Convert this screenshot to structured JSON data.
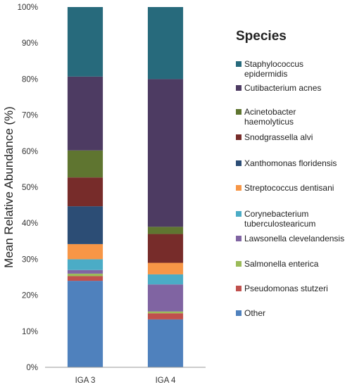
{
  "chart_data": {
    "type": "bar",
    "stacked": true,
    "ylabel": "Mean Relative Abundance (%)",
    "xlabel": "",
    "ylim": [
      0,
      100
    ],
    "yticks": [
      "0%",
      "10%",
      "20%",
      "30%",
      "40%",
      "50%",
      "60%",
      "70%",
      "80%",
      "90%",
      "100%"
    ],
    "categories": [
      "IGA 3",
      "IGA 4"
    ],
    "legend_title": "Species",
    "legend_position": "right",
    "series": [
      {
        "name": "Other",
        "color": "#4F81BD",
        "values": [
          24.0,
          13.3
        ]
      },
      {
        "name": "Pseudomonas stutzeri",
        "color": "#C0504D",
        "values": [
          1.3,
          1.7
        ]
      },
      {
        "name": "Salmonella enterica",
        "color": "#9BBB59",
        "values": [
          0.7,
          0.5
        ]
      },
      {
        "name": "Lawsonella clevelandensis",
        "color": "#8064A2",
        "values": [
          1.0,
          7.5
        ]
      },
      {
        "name": "Corynebacterium tuberculostearicum",
        "color": "#4BACC6",
        "values": [
          3.0,
          2.8
        ]
      },
      {
        "name": "Streptococcus dentisani",
        "color": "#F79646",
        "values": [
          4.2,
          3.2
        ]
      },
      {
        "name": "Xanthomonas floridensis",
        "color": "#2C4D75",
        "values": [
          10.5,
          0.0
        ]
      },
      {
        "name": "Snodgrassella alvi",
        "color": "#772C2A",
        "values": [
          8.0,
          8.0
        ]
      },
      {
        "name": "Acinetobacter haemolyticus",
        "color": "#5F7530",
        "values": [
          7.5,
          2.0
        ]
      },
      {
        "name": "Cutibacterium acnes",
        "color": "#4D3B62",
        "values": [
          20.5,
          41.0
        ]
      },
      {
        "name": "Staphylococcus epidermidis",
        "color": "#276A7C",
        "values": [
          19.3,
          20.0
        ]
      }
    ],
    "legend_labels": [
      {
        "name": "Staphylococcus epidermidis",
        "lines": [
          "Staphylococcus",
          "epidermidis"
        ]
      },
      {
        "name": "Cutibacterium acnes",
        "lines": [
          "Cutibacterium acnes"
        ]
      },
      {
        "name": "Acinetobacter haemolyticus",
        "lines": [
          "Acinetobacter",
          "haemolyticus"
        ]
      },
      {
        "name": "Snodgrassella alvi",
        "lines": [
          "Snodgrassella alvi"
        ]
      },
      {
        "name": "Xanthomonas floridensis",
        "lines": [
          "Xanthomonas floridensis"
        ]
      },
      {
        "name": "Streptococcus dentisani",
        "lines": [
          "Streptococcus dentisani"
        ]
      },
      {
        "name": "Corynebacterium tuberculostearicum",
        "lines": [
          "Corynebacterium",
          "tuberculostearicum"
        ]
      },
      {
        "name": "Lawsonella clevelandensis",
        "lines": [
          "Lawsonella clevelandensis"
        ]
      },
      {
        "name": "Salmonella enterica",
        "lines": [
          "Salmonella enterica"
        ]
      },
      {
        "name": "Pseudomonas stutzeri",
        "lines": [
          "Pseudomonas stutzeri"
        ]
      },
      {
        "name": "Other",
        "lines": [
          "Other"
        ]
      }
    ]
  }
}
